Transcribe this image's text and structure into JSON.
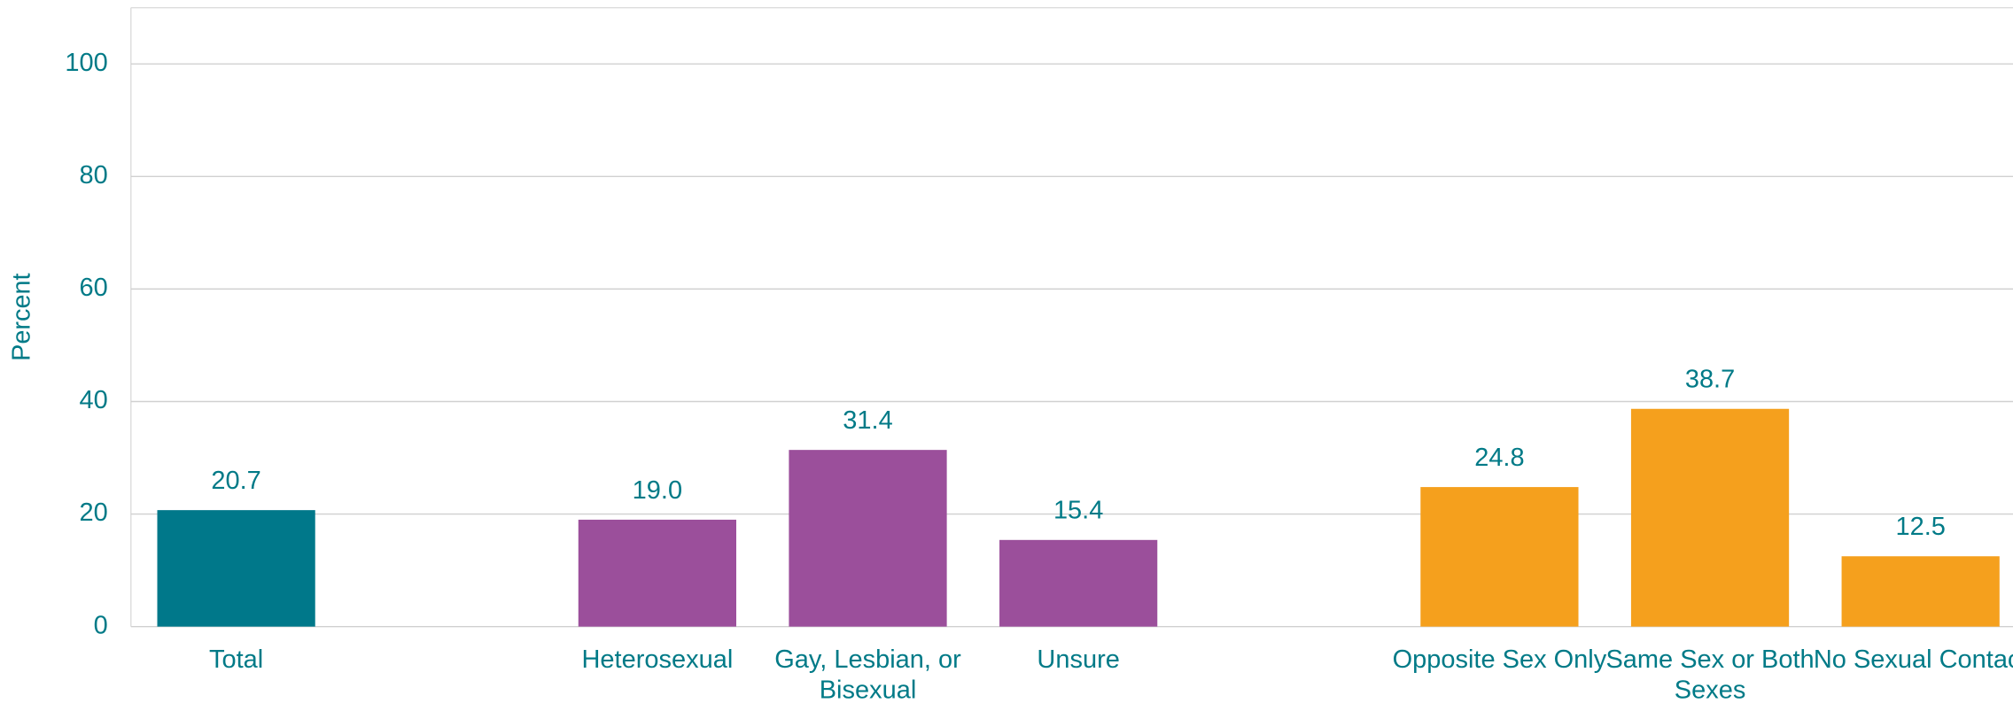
{
  "chart_data": {
    "type": "bar",
    "y_label": "Percent",
    "categories": [
      "Total",
      null,
      "Heterosexual",
      "Gay, Lesbian, or Bisexual",
      "Unsure",
      null,
      "Opposite Sex Only",
      "Same Sex or Both Sexes",
      "No Sexual Contact"
    ],
    "values": [
      20.7,
      null,
      19.0,
      31.4,
      15.4,
      null,
      24.8,
      38.7,
      12.5
    ],
    "value_labels": [
      "20.7",
      null,
      "19.0",
      "31.4",
      "15.4",
      null,
      "24.8",
      "38.7",
      "12.5"
    ],
    "colors": [
      "#00788a",
      null,
      "#9b4f9b",
      "#9b4f9b",
      "#9b4f9b",
      null,
      "#f5a01d",
      "#f5a01d",
      "#f5a01d"
    ],
    "ylim": [
      0,
      110
    ],
    "yticks": [
      0,
      20,
      40,
      60,
      80,
      100
    ],
    "grid": true
  }
}
